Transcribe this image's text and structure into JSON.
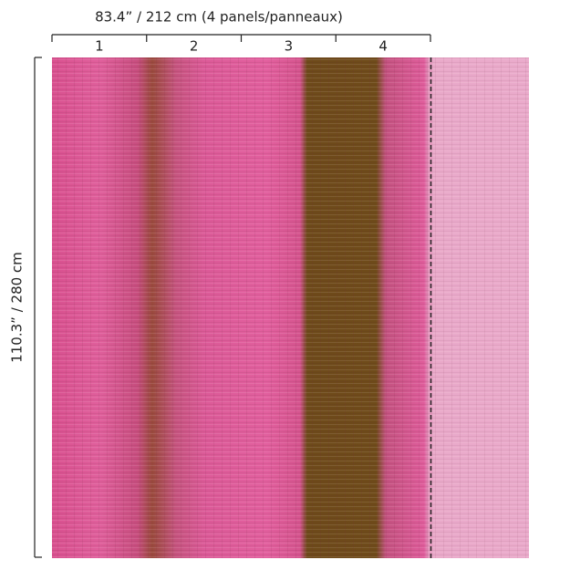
{
  "dimensions": {
    "width": "83.4” / 212 cm (4 panels/panneaux)",
    "height": "110.3” / 280 cm"
  },
  "panels": [
    "1",
    "2",
    "3",
    "4"
  ]
}
